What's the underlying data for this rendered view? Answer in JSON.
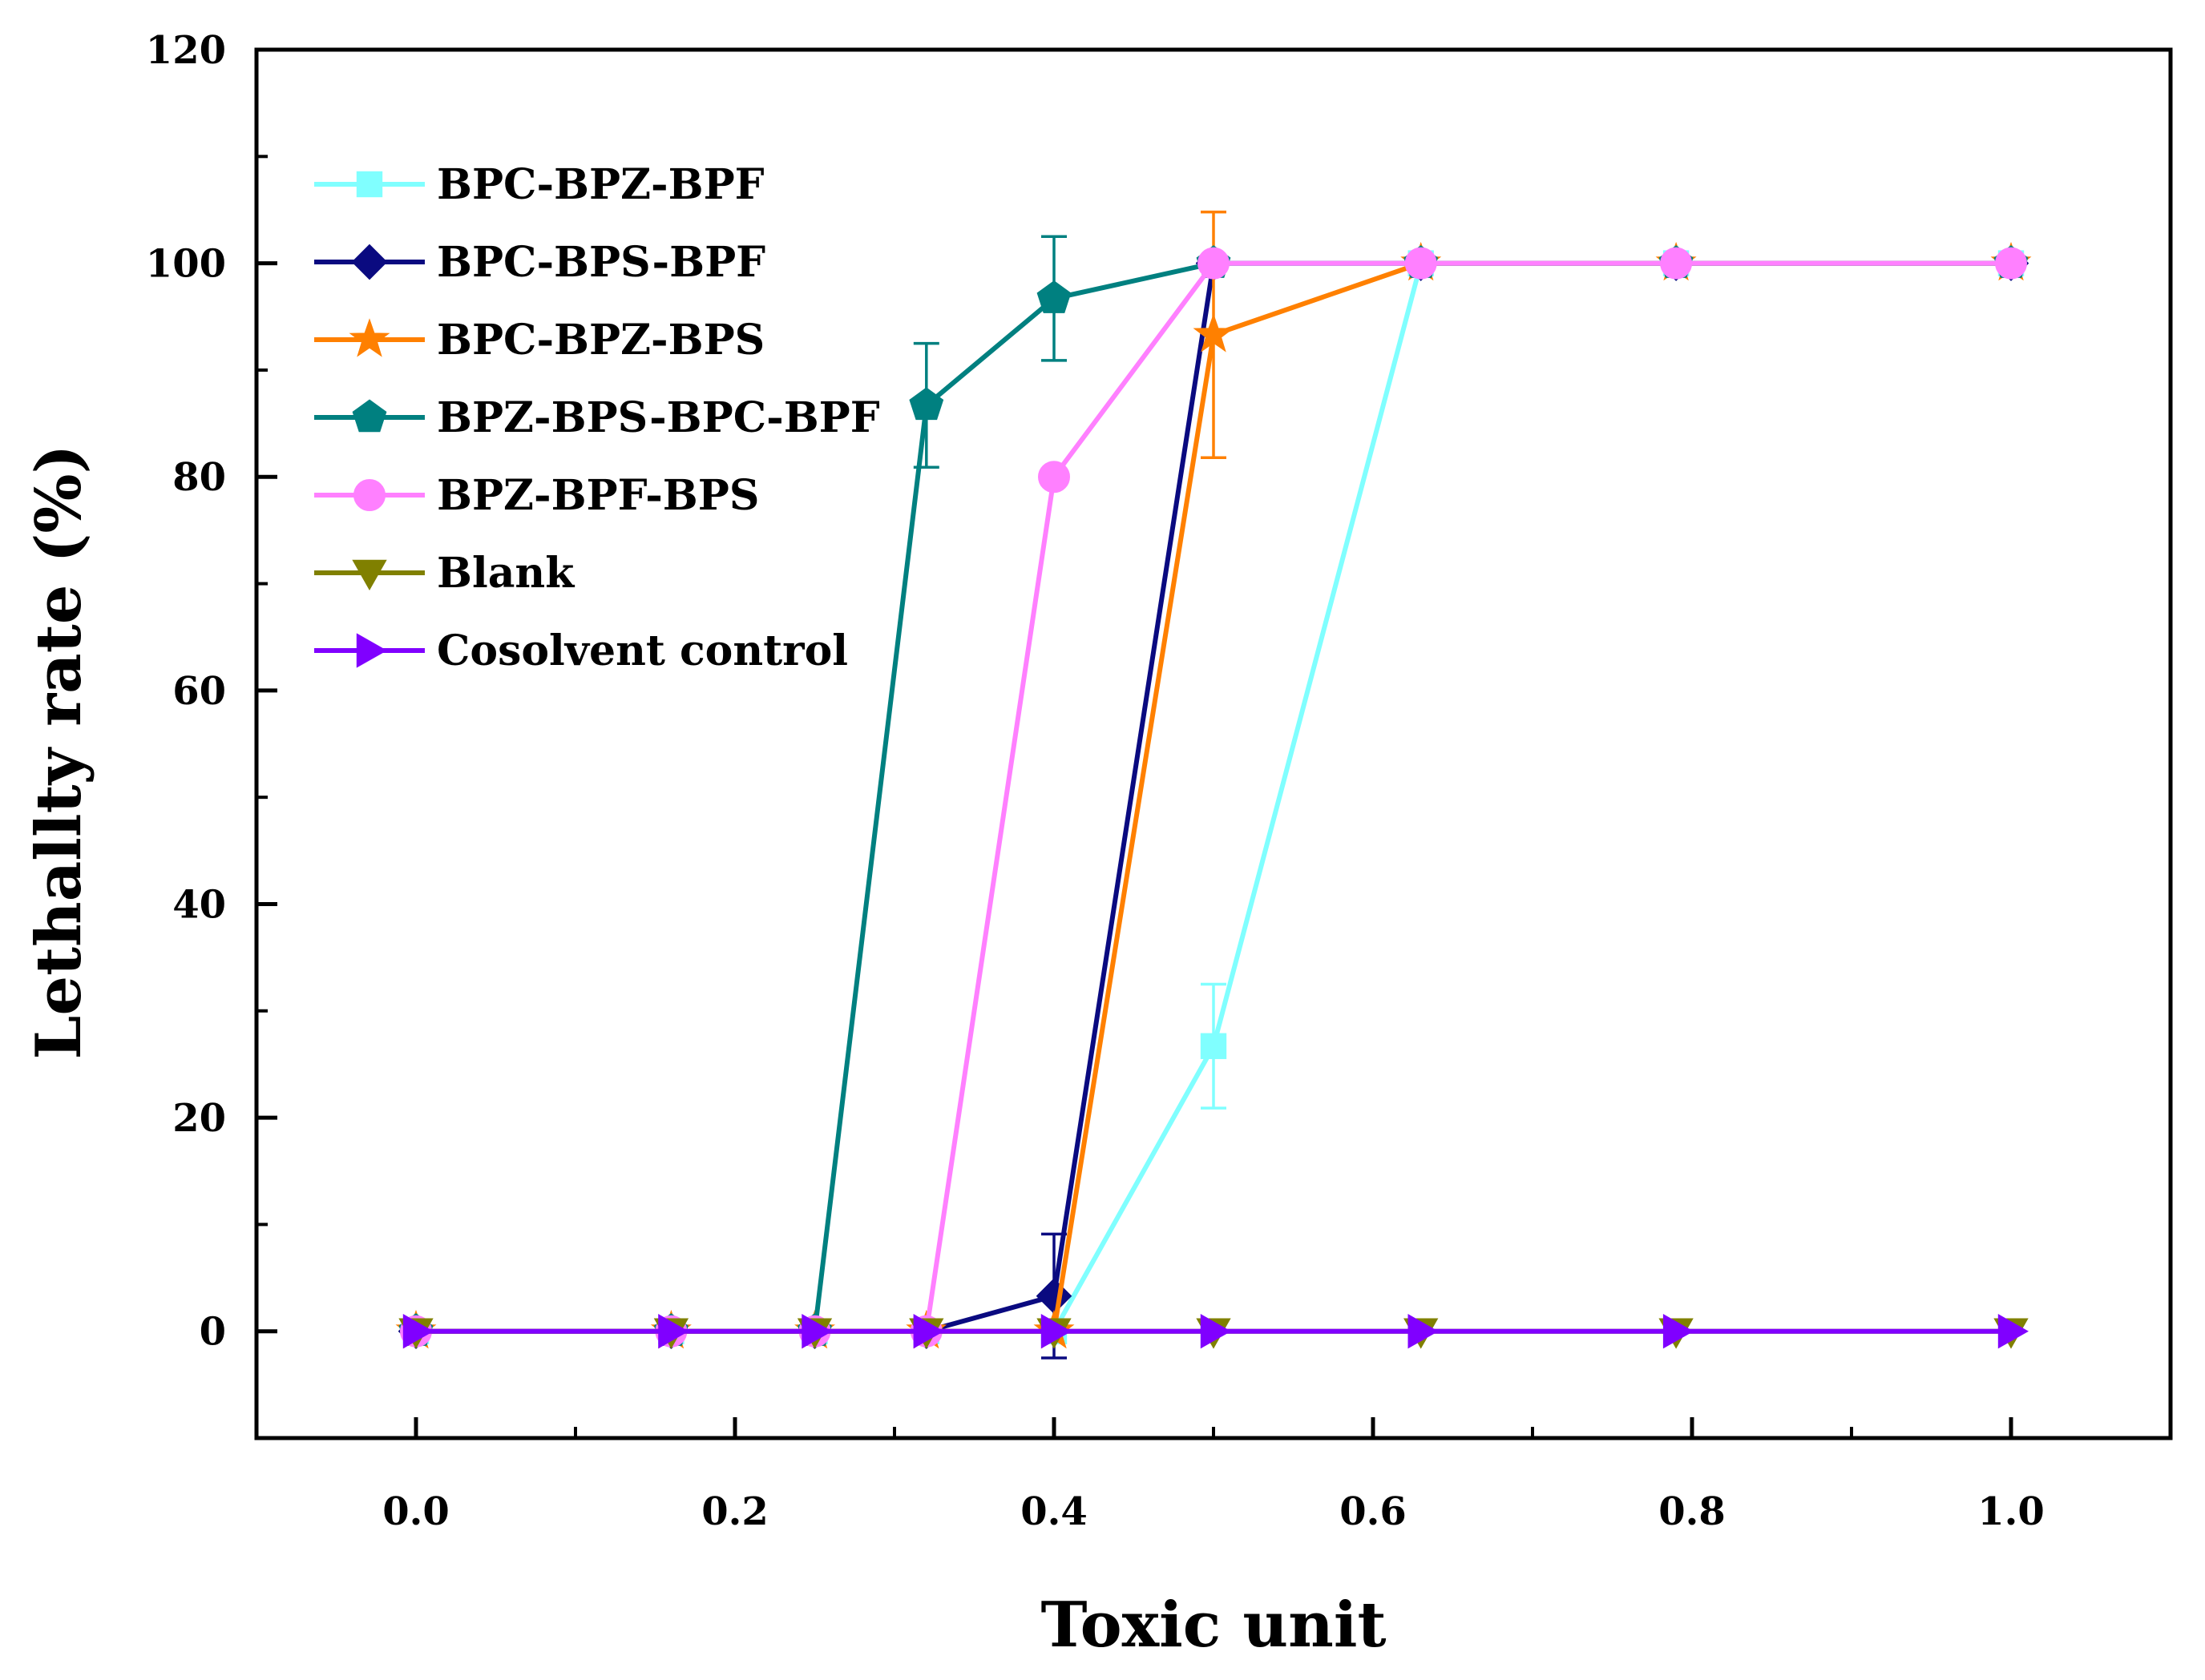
{
  "chart_data": {
    "type": "line",
    "title": "",
    "xlabel": "Toxic unit",
    "ylabel": "Lethallty rate (%)",
    "xlim": [
      -0.1,
      1.1
    ],
    "ylim": [
      -10,
      120
    ],
    "xticks": [
      0.0,
      0.2,
      0.4,
      0.6,
      0.8,
      1.0
    ],
    "xtick_labels": [
      "0.0",
      "0.2",
      "0.4",
      "0.6",
      "0.8",
      "1.0"
    ],
    "yticks": [
      0,
      20,
      40,
      60,
      80,
      100,
      120
    ],
    "ytick_labels": [
      "0",
      "20",
      "40",
      "60",
      "80",
      "100",
      "120"
    ],
    "grid": false,
    "legend_position": "top-left",
    "series": [
      {
        "name": "BPC-BPZ-BPF",
        "color": "#80FFFF",
        "marker": "square",
        "x": [
          0,
          0.16,
          0.25,
          0.32,
          0.4,
          0.5,
          0.63,
          0.79,
          1.0
        ],
        "y": [
          0,
          0,
          0,
          0,
          0,
          26.7,
          100,
          100,
          100
        ],
        "error": [
          0,
          0,
          0,
          0,
          0,
          5.8,
          0,
          0,
          0
        ]
      },
      {
        "name": "BPC-BPS-BPF",
        "color": "#0A0A80",
        "marker": "diamond",
        "x": [
          0,
          0.16,
          0.25,
          0.32,
          0.4,
          0.5,
          0.63,
          0.79,
          1.0
        ],
        "y": [
          0,
          0,
          0,
          0,
          3.3,
          100,
          100,
          100,
          100
        ],
        "error": [
          0,
          0,
          0,
          0,
          5.8,
          0,
          0,
          0,
          0
        ]
      },
      {
        "name": "BPC-BPZ-BPS",
        "color": "#FF8000",
        "marker": "star",
        "x": [
          0,
          0.16,
          0.25,
          0.32,
          0.4,
          0.5,
          0.63,
          0.79,
          1.0
        ],
        "y": [
          0,
          0,
          0,
          0,
          0,
          93.3,
          100,
          100,
          100
        ],
        "error": [
          0,
          0,
          0,
          0,
          0,
          11.5,
          0,
          0,
          0
        ]
      },
      {
        "name": "BPZ-BPS-BPC-BPF",
        "color": "#008080",
        "marker": "pentagon",
        "x": [
          0,
          0.16,
          0.25,
          0.32,
          0.4,
          0.5,
          0.63,
          0.79,
          1.0
        ],
        "y": [
          0,
          0,
          0,
          86.7,
          96.7,
          100,
          100,
          100,
          100
        ],
        "error": [
          0,
          0,
          0,
          5.8,
          5.8,
          0,
          0,
          0,
          0
        ]
      },
      {
        "name": "BPZ-BPF-BPS",
        "color": "#FF80FF",
        "marker": "circle",
        "x": [
          0,
          0.16,
          0.25,
          0.32,
          0.4,
          0.5,
          0.63,
          0.79,
          1.0
        ],
        "y": [
          0,
          0,
          0,
          0,
          80,
          100,
          100,
          100,
          100
        ],
        "error": [
          0,
          0,
          0,
          0,
          0,
          0,
          0,
          0,
          0
        ]
      },
      {
        "name": "Blank",
        "color": "#808000",
        "marker": "triangle-down",
        "x": [
          0,
          0.16,
          0.25,
          0.32,
          0.4,
          0.5,
          0.63,
          0.79,
          1.0
        ],
        "y": [
          0,
          0,
          0,
          0,
          0,
          0,
          0,
          0,
          0
        ],
        "error": [
          0,
          0,
          0,
          0,
          0,
          0,
          0,
          0,
          0
        ]
      },
      {
        "name": "Cosolvent control",
        "color": "#8000FF",
        "marker": "triangle-right",
        "x": [
          0,
          0.16,
          0.25,
          0.32,
          0.4,
          0.5,
          0.63,
          0.79,
          1.0
        ],
        "y": [
          0,
          0,
          0,
          0,
          0,
          0,
          0,
          0,
          0
        ],
        "error": [
          0,
          0,
          0,
          0,
          0,
          0,
          0,
          0,
          0
        ]
      }
    ]
  }
}
